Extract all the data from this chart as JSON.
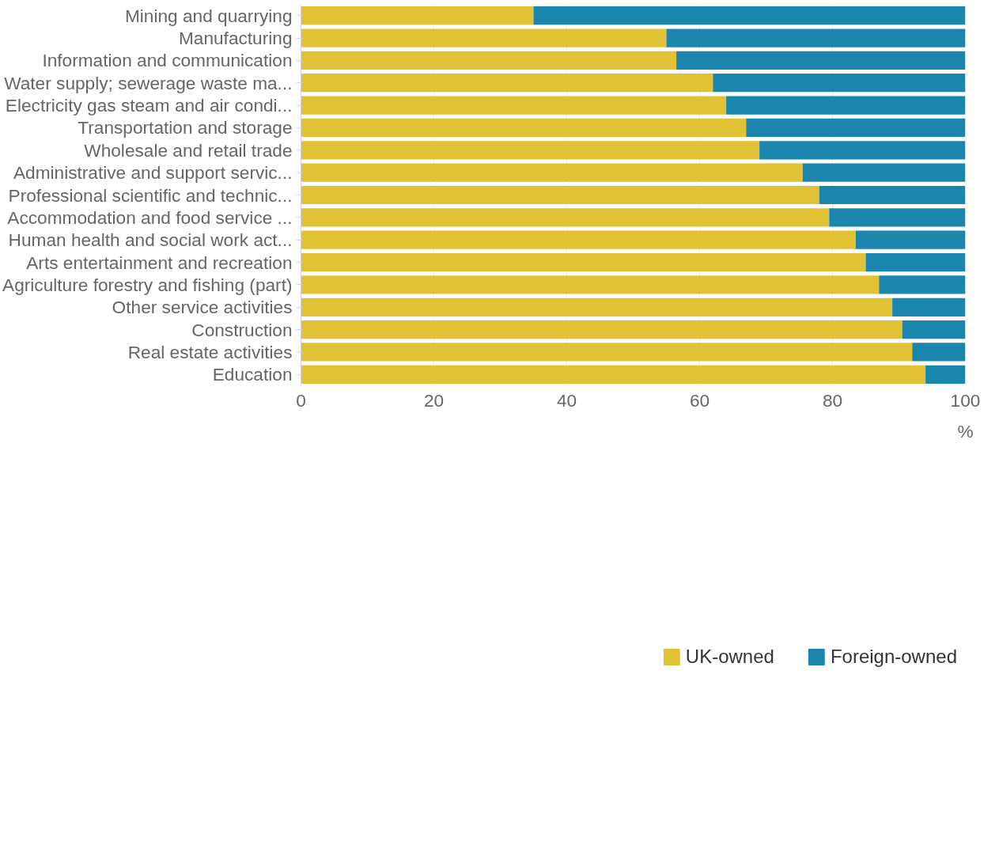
{
  "chart_data": {
    "type": "bar",
    "orientation": "horizontal",
    "stacked": true,
    "categories": [
      "Mining and quarrying",
      "Manufacturing",
      "Information and communication",
      "Water supply; sewerage waste ma...",
      "Electricity gas steam and air condi...",
      "Transportation and storage",
      "Wholesale and retail trade",
      "Administrative and support servic...",
      "Professional scientific and technic...",
      "Accommodation and food service ...",
      "Human health and social work act...",
      "Arts entertainment and recreation",
      "Agriculture forestry and fishing (part)",
      "Other service activities",
      "Construction",
      "Real estate activities",
      "Education"
    ],
    "series": [
      {
        "name": "UK-owned",
        "color": "#e2c235",
        "values": [
          35,
          55,
          56.5,
          62,
          64,
          67,
          69,
          75.5,
          78,
          79.5,
          83.5,
          85,
          87,
          89,
          90.5,
          92,
          94
        ]
      },
      {
        "name": "Foreign-owned",
        "color": "#1a85ad",
        "values": [
          65,
          45,
          43.5,
          38,
          36,
          33,
          31,
          24.5,
          22,
          20.5,
          16.5,
          15,
          13,
          11,
          9.5,
          8,
          6
        ]
      }
    ],
    "xlim": [
      0,
      100
    ],
    "xticks": [
      0,
      20,
      40,
      60,
      80,
      100
    ],
    "xlabel": "%",
    "grid": "x",
    "legend": "bottom"
  }
}
